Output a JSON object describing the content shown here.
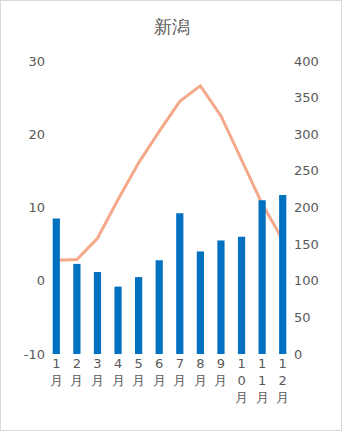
{
  "chart_data": {
    "type": "bar",
    "title": "新潟",
    "categories": [
      "1月",
      "2月",
      "3月",
      "4月",
      "5月",
      "6月",
      "7月",
      "8月",
      "9月",
      "10月",
      "11月",
      "12月"
    ],
    "series": [
      {
        "type": "bar",
        "color": "#0070c0",
        "axis": "y2",
        "values": [
          185,
          123,
          112,
          92,
          105,
          128,
          192,
          140,
          155,
          160,
          210,
          217
        ]
      },
      {
        "type": "line",
        "color": "#f4a98a",
        "values": [
          2.8,
          2.9,
          5.8,
          11.1,
          16.1,
          20.4,
          24.5,
          26.6,
          22.5,
          16.4,
          10.5,
          5.6
        ]
      }
    ],
    "ylim": [
      -10,
      30
    ],
    "yticks": [
      -10,
      0,
      10,
      20,
      30
    ],
    "y2lim": [
      0,
      400
    ],
    "y2ticks": [
      0,
      50,
      100,
      150,
      200,
      250,
      300,
      350,
      400
    ],
    "grid": false
  }
}
